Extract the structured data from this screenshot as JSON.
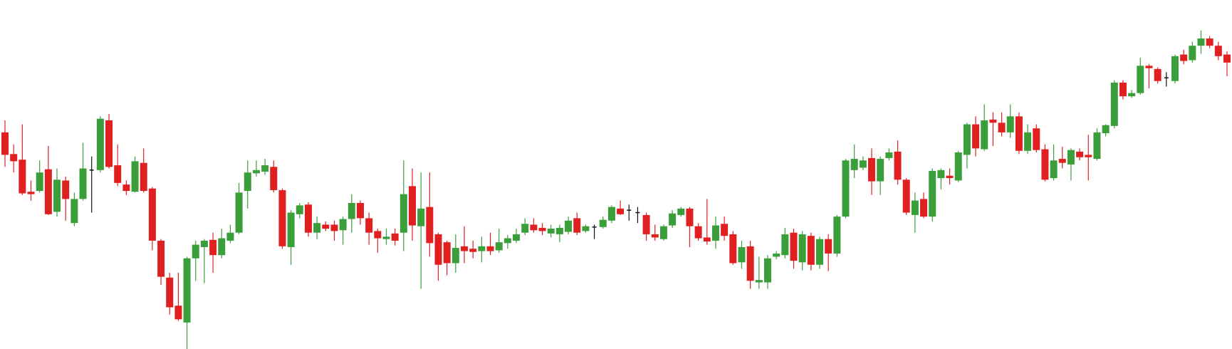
{
  "chart_data": {
    "type": "candlestick",
    "up_color": "#3a9e3a",
    "down_color": "#e02020",
    "flat_color": "#111111",
    "ylim": [
      0,
      435
    ],
    "open": [
      270,
      243,
      236,
      196,
      197,
      224,
      171,
      210,
      157,
      187,
      223,
      223,
      285,
      229,
      205,
      196,
      232,
      200,
      135,
      89,
      54,
      33,
      113,
      127,
      136,
      117,
      135,
      145,
      197,
      219,
      221,
      227,
      198,
      127,
      168,
      180,
      145,
      155,
      155,
      148,
      162,
      182,
      163,
      147,
      137,
      144,
      145,
      203,
      153,
      177,
      143,
      133,
      107,
      128,
      125,
      122,
      128,
      123,
      132,
      135,
      145,
      155,
      151,
      144,
      143,
      146,
      163,
      147,
      152,
      152,
      160,
      175,
      173,
      170,
      167,
      143,
      137,
      154,
      167,
      175,
      153,
      139,
      135,
      156,
      143,
      108,
      128,
      83,
      83,
      115,
      117,
      145,
      108,
      141,
      105,
      137,
      119,
      165,
      223,
      226,
      238,
      209,
      238,
      246,
      211,
      167,
      187,
      165,
      213,
      216,
      210,
      242,
      280,
      249,
      286,
      282,
      270,
      290,
      247,
      275,
      249,
      213,
      237,
      230,
      246,
      242,
      237,
      269,
      278,
      332,
      315,
      319,
      353,
      349,
      338,
      334,
      367,
      360,
      378,
      387,
      378,
      367
    ],
    "high": [
      285,
      255,
      280,
      210,
      235,
      253,
      225,
      215,
      195,
      257,
      240,
      290,
      293,
      255,
      210,
      240,
      250,
      202,
      137,
      95,
      95,
      115,
      135,
      137,
      145,
      150,
      155,
      207,
      235,
      235,
      237,
      235,
      200,
      173,
      182,
      183,
      165,
      159,
      160,
      165,
      193,
      185,
      170,
      150,
      150,
      150,
      235,
      225,
      220,
      220,
      145,
      135,
      143,
      153,
      135,
      140,
      145,
      150,
      142,
      150,
      163,
      163,
      157,
      155,
      155,
      165,
      170,
      155,
      155,
      165,
      179,
      185,
      180,
      177,
      170,
      155,
      155,
      173,
      177,
      177,
      157,
      187,
      165,
      165,
      147,
      135,
      135,
      115,
      117,
      122,
      151,
      150,
      147,
      145,
      140,
      143,
      167,
      237,
      255,
      240,
      250,
      240,
      250,
      260,
      213,
      195,
      195,
      225,
      225,
      225,
      247,
      282,
      290,
      305,
      295,
      295,
      305,
      295,
      280,
      280,
      255,
      255,
      252,
      250,
      250,
      267,
      275,
      280,
      335,
      335,
      323,
      363,
      355,
      351,
      345,
      367,
      373,
      383,
      397,
      390,
      383,
      371
    ],
    "low": [
      227,
      220,
      192,
      185,
      195,
      167,
      165,
      160,
      153,
      185,
      170,
      220,
      225,
      203,
      192,
      195,
      195,
      123,
      80,
      43,
      35,
      0,
      85,
      82,
      95,
      113,
      132,
      143,
      175,
      215,
      217,
      195,
      125,
      105,
      163,
      140,
      137,
      147,
      135,
      130,
      145,
      155,
      130,
      120,
      130,
      129,
      122,
      135,
      75,
      115,
      85,
      92,
      95,
      107,
      113,
      108,
      117,
      120,
      125,
      132,
      142,
      145,
      142,
      139,
      133,
      143,
      142,
      145,
      137,
      150,
      157,
      167,
      160,
      157,
      135,
      135,
      135,
      151,
      165,
      127,
      135,
      130,
      125,
      135,
      105,
      100,
      75,
      75,
      75,
      112,
      113,
      100,
      98,
      98,
      100,
      97,
      115,
      163,
      213,
      223,
      192,
      192,
      235,
      205,
      167,
      145,
      163,
      159,
      199,
      205,
      208,
      225,
      240,
      247,
      253,
      265,
      263,
      243,
      243,
      245,
      209,
      210,
      225,
      210,
      235,
      210,
      235,
      265,
      275,
      311,
      313,
      317,
      325,
      331,
      327,
      331,
      355,
      357,
      368,
      375,
      360,
      340
    ],
    "close": [
      242,
      234,
      194,
      193,
      220,
      168,
      211,
      187,
      187,
      225,
      223,
      287,
      227,
      207,
      197,
      234,
      197,
      135,
      90,
      52,
      37,
      113,
      130,
      135,
      117,
      138,
      145,
      195,
      220,
      223,
      229,
      198,
      128,
      170,
      179,
      145,
      157,
      150,
      147,
      162,
      182,
      163,
      145,
      138,
      140,
      135,
      193,
      154,
      175,
      132,
      105,
      107,
      126,
      122,
      121,
      128,
      122,
      133,
      138,
      143,
      156,
      148,
      147,
      150,
      151,
      160,
      145,
      153,
      152,
      161,
      177,
      168,
      173,
      170,
      143,
      139,
      153,
      169,
      175,
      153,
      138,
      134,
      154,
      141,
      107,
      127,
      85,
      86,
      113,
      119,
      143,
      110,
      143,
      105,
      137,
      119,
      165,
      235,
      237,
      235,
      209,
      237,
      245,
      211,
      170,
      185,
      165,
      222,
      223,
      213,
      245,
      280,
      250,
      285,
      282,
      270,
      290,
      247,
      270,
      248,
      211,
      235,
      232,
      248,
      239,
      239,
      270,
      279,
      332,
      315,
      319,
      353,
      350,
      334,
      338,
      365,
      359,
      378,
      387,
      378,
      365,
      357
    ]
  }
}
